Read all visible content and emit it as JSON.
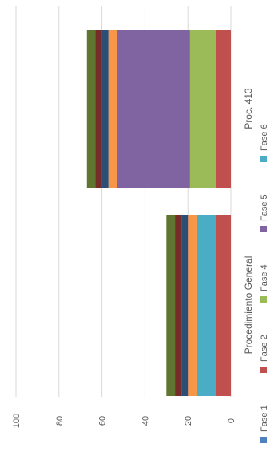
{
  "chart_data": {
    "type": "bar",
    "orientation": "stacked-horizontal-rotated",
    "categories": [
      "Procedimiento General",
      "Proc. 413"
    ],
    "series": [
      {
        "name": "Fase 1",
        "color": "#4f81bd",
        "values": [
          0,
          0
        ]
      },
      {
        "name": "Fase 2",
        "color": "#c0504d",
        "values": [
          7,
          7
        ]
      },
      {
        "name": "Fase 4",
        "color": "#9bbb59",
        "values": [
          0,
          12
        ]
      },
      {
        "name": "Fase 5",
        "color": "#8064a2",
        "values": [
          0,
          34
        ]
      },
      {
        "name": "Fase 6",
        "color": "#4bacc6",
        "values": [
          9,
          0
        ]
      },
      {
        "name": "",
        "color": "#f79646",
        "values": [
          4,
          4
        ]
      },
      {
        "name": "",
        "color": "#2c4d75",
        "values": [
          3,
          3
        ]
      },
      {
        "name": "",
        "color": "#772c2a",
        "values": [
          3,
          3
        ]
      },
      {
        "name": "",
        "color": "#5f7530",
        "values": [
          4,
          4
        ]
      }
    ],
    "axis": {
      "min": 0,
      "max": 100,
      "ticks": [
        0,
        20,
        40,
        60,
        80,
        100
      ]
    },
    "legend_position": "bottom",
    "gridlines": true
  }
}
